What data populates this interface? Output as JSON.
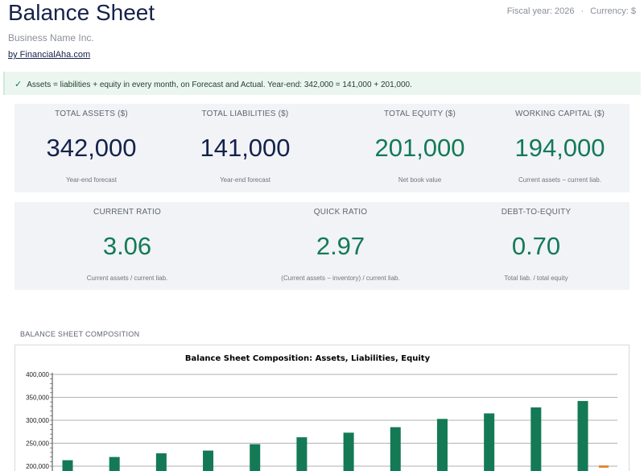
{
  "header": {
    "title": "Balance Sheet",
    "fiscal_year": "Fiscal year: 2026",
    "separator": "·",
    "currency": "Currency: $",
    "business": "Business Name Inc.",
    "by_link": "by FinancialAha.com"
  },
  "check": {
    "icon": "check-icon",
    "text": "Assets = liabilities + equity in every month, on Forecast and Actual. Year-end: 342,000 = 141,000 + 201,000."
  },
  "kpis_top": [
    {
      "label": "TOTAL ASSETS ($)",
      "value": "342,000",
      "sub": "Year-end forecast",
      "color": "#15224a"
    },
    {
      "label": "TOTAL LIABILITIES ($)",
      "value": "141,000",
      "sub": "Year-end forecast",
      "color": "#15224a"
    },
    {
      "label": "TOTAL EQUITY ($)",
      "value": "201,000",
      "sub": "Net book value",
      "color": "#137a55"
    },
    {
      "label": "WORKING CAPITAL ($)",
      "value": "194,000",
      "sub": "Current assets − current liab.",
      "color": "#137a55"
    }
  ],
  "kpis_bottom": [
    {
      "label": "CURRENT RATIO",
      "value": "3.06",
      "sub": "Current assets / current liab.",
      "color": "#137a55"
    },
    {
      "label": "QUICK RATIO",
      "value": "2.97",
      "sub": "(Current assets − inventory) / current liab.",
      "color": "#137a55"
    },
    {
      "label": "DEBT-TO-EQUITY",
      "value": "0.70",
      "sub": "Total liab. / total equity",
      "color": "#137a55"
    }
  ],
  "section_title": "BALANCE SHEET COMPOSITION",
  "chart_data": {
    "type": "bar",
    "title": "Balance Sheet Composition: Assets, Liabilities, Equity",
    "ylim": [
      200000,
      400000
    ],
    "yticks": [
      "200,000",
      "250,000",
      "300,000",
      "350,000",
      "400,000"
    ],
    "ytick_values": [
      200000,
      250000,
      300000,
      350000,
      400000
    ],
    "series": [
      {
        "values": [
          213000,
          220000,
          228000,
          234000,
          248000,
          263000,
          273000,
          285000,
          303000,
          315000,
          328000,
          342000
        ],
        "color": "#137a55"
      }
    ],
    "grid": true
  }
}
